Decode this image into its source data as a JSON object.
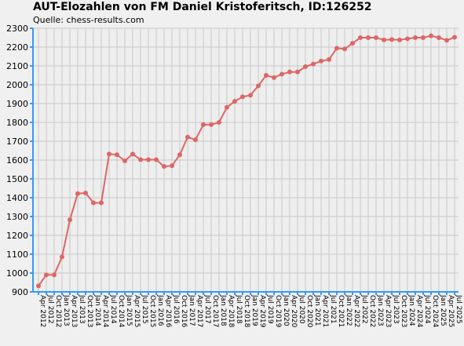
{
  "chart_data": {
    "type": "line",
    "title": "AUT-Elozahlen von FM Daniel Kristoferitsch, ID:126252",
    "subtitle": "Quelle: chess-results.com",
    "xlabel": "",
    "ylabel": "",
    "ylim": [
      900,
      2300
    ],
    "yticks": [
      900,
      1000,
      1100,
      1200,
      1300,
      1400,
      1500,
      1600,
      1700,
      1800,
      1900,
      2000,
      2100,
      2200,
      2300
    ],
    "grid": true,
    "legend": "none",
    "line_color": "#dd6666",
    "grid_color": "#c8c8c8",
    "axis_color": "#3399ff",
    "plot_background": "#eeeeee",
    "x": [
      "Apr 2012",
      "Jul 2012",
      "Oct 2012",
      "Jan 2013",
      "Apr 2013",
      "Jul 2013",
      "Oct 2013",
      "Jan 2014",
      "Apr 2014",
      "Jul 2014",
      "Oct 2014",
      "Jan 2015",
      "Apr 2015",
      "Jul 2015",
      "Oct 2015",
      "Jan 2016",
      "Apr 2016",
      "Jul 2016",
      "Oct 2016",
      "Jan 2017",
      "Apr 2017",
      "Jul 2017",
      "Oct 2017",
      "Jan 2018",
      "Apr 2018",
      "Jul 2018",
      "Oct 2018",
      "Jan 2019",
      "Apr 2019",
      "Jul 2019",
      "Oct 2019",
      "Jan 2020",
      "Apr 2020",
      "Jul 2020",
      "Oct 2020",
      "Jan 2021",
      "Apr 2021",
      "Jul 2021",
      "Oct 2021",
      "Jan 2022",
      "Apr 2022",
      "Jul 2022",
      "Oct 2022",
      "Jan 2023",
      "Apr 2023",
      "Jul 2023",
      "Oct 2023",
      "Jan 2024",
      "Apr 2024",
      "Jul 2024",
      "Oct 2024",
      "Jan 2025",
      "Apr 2025",
      "Jul 2025"
    ],
    "values": [
      932,
      990,
      990,
      1086,
      1283,
      1422,
      1425,
      1373,
      1373,
      1632,
      1628,
      1596,
      1632,
      1602,
      1602,
      1602,
      1566,
      1570,
      1628,
      1722,
      1708,
      1788,
      1788,
      1800,
      1880,
      1912,
      1936,
      1944,
      1994,
      2050,
      2038,
      2056,
      2068,
      2068,
      2096,
      2110,
      2126,
      2134,
      2194,
      2190,
      2220,
      2250,
      2250,
      2250,
      2238,
      2240,
      2238,
      2244,
      2250,
      2250,
      2260,
      2250,
      2236,
      2252
    ],
    "tick_labels": [
      "Apr 2012",
      "Jul 2012",
      "Oct 2012",
      "Jan 2013",
      "Apr 2013",
      "Jul 2013",
      "Oct 2013",
      "Jan 2014",
      "Apr 2014",
      "Jul 2014",
      "Oct 2014",
      "Jan 2015",
      "Apr 2015",
      "Jul 2015",
      "Oct 2015",
      "Jan 2016",
      "Apr 2016",
      "Jul 2016",
      "Oct 2016",
      "Jan 2017",
      "Apr 2017",
      "Jul 2017",
      "Oct 2017",
      "Jan 2018",
      "Apr 2018",
      "Jul 2018",
      "Oct 2018",
      "Jan 2019",
      "Apr 2019",
      "Jul 2019",
      "Oct 2019",
      "Jan 2020",
      "Apr 2020",
      "Jul 2020",
      "Oct 2020",
      "Jan 2021",
      "Apr 2021",
      "Jul 2021",
      "Oct 2021",
      "Jan 2022",
      "Apr 2022",
      "Jul 2022",
      "Oct 2022",
      "Jan 2023",
      "Apr 2023",
      "Jul 2023",
      "Oct 2023",
      "Jan 2024",
      "Apr 2024",
      "Jul 2024",
      "Oct 2024",
      "Jan 2025",
      "Apr 2025",
      "Jul 2025"
    ]
  }
}
